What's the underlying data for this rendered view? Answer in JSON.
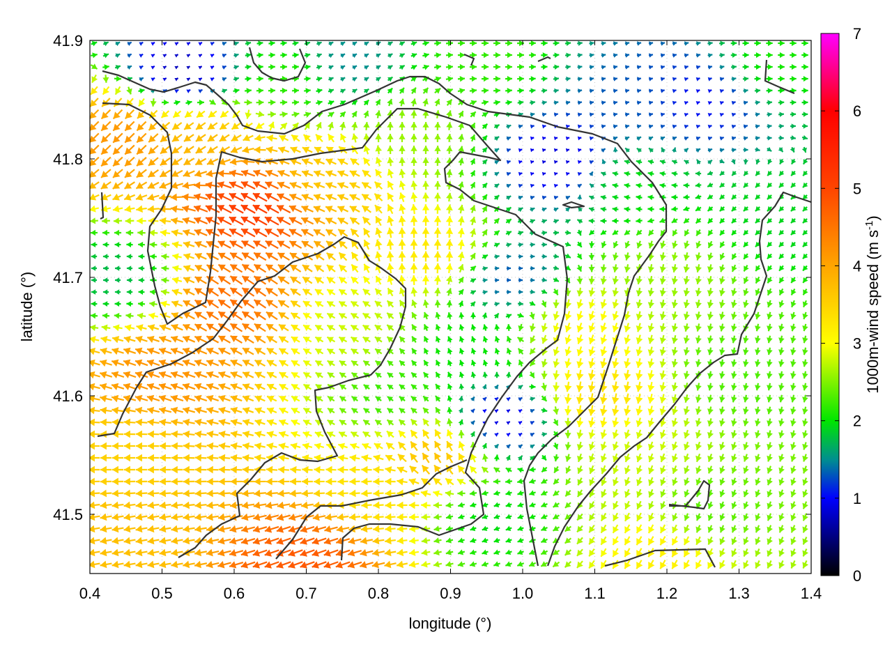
{
  "chart_data": {
    "type": "vector-field",
    "title": "",
    "xlabel": "longitude (°)",
    "ylabel": "latitude (°)",
    "xlim": [
      0.4,
      1.4
    ],
    "ylim": [
      41.45,
      41.9
    ],
    "xticks": [
      {
        "value": 0.4,
        "label": "0.4"
      },
      {
        "value": 0.5,
        "label": "0.5"
      },
      {
        "value": 0.6,
        "label": "0.6"
      },
      {
        "value": 0.7,
        "label": "0.7"
      },
      {
        "value": 0.8,
        "label": "0.8"
      },
      {
        "value": 0.9,
        "label": "0.9"
      },
      {
        "value": 1.0,
        "label": "1.0"
      },
      {
        "value": 1.1,
        "label": "1.1"
      },
      {
        "value": 1.2,
        "label": "1.2"
      },
      {
        "value": 1.3,
        "label": "1.3"
      },
      {
        "value": 1.4,
        "label": "1.4"
      }
    ],
    "yticks": [
      {
        "value": 41.5,
        "label": "41.5"
      },
      {
        "value": 41.6,
        "label": "41.6"
      },
      {
        "value": 41.7,
        "label": "41.7"
      },
      {
        "value": 41.8,
        "label": "41.8"
      },
      {
        "value": 41.9,
        "label": "41.9"
      }
    ],
    "grid": true,
    "colorbar": {
      "label": "1000m-wind speed (m s",
      "label_sup": "-1",
      "label_end": ")",
      "range": [
        0,
        7
      ],
      "ticks": [
        {
          "value": 0,
          "label": "0"
        },
        {
          "value": 1,
          "label": "1"
        },
        {
          "value": 2,
          "label": "2"
        },
        {
          "value": 3,
          "label": "3"
        },
        {
          "value": 4,
          "label": "4"
        },
        {
          "value": 5,
          "label": "5"
        },
        {
          "value": 6,
          "label": "6"
        },
        {
          "value": 7,
          "label": "7"
        }
      ],
      "colormap": [
        {
          "value": 0,
          "color": "#000000"
        },
        {
          "value": 1,
          "color": "#0000ff"
        },
        {
          "value": 1.5,
          "color": "#008f8f"
        },
        {
          "value": 2,
          "color": "#00e600"
        },
        {
          "value": 3,
          "color": "#ffff00"
        },
        {
          "value": 4,
          "color": "#ffa500"
        },
        {
          "value": 5,
          "color": "#ff4500"
        },
        {
          "value": 6,
          "color": "#ff0000"
        },
        {
          "value": 7,
          "color": "#ff00ff"
        }
      ]
    },
    "wind_regions": [
      {
        "lon": 0.45,
        "lat": 41.82,
        "speed": 4.2,
        "dir": 225
      },
      {
        "lon": 0.55,
        "lat": 41.82,
        "speed": 3.8,
        "dir": 215
      },
      {
        "lon": 0.63,
        "lat": 41.76,
        "speed": 5.2,
        "dir": 150
      },
      {
        "lon": 0.6,
        "lat": 41.68,
        "speed": 4.6,
        "dir": 145
      },
      {
        "lon": 0.5,
        "lat": 41.62,
        "speed": 4.2,
        "dir": 160
      },
      {
        "lon": 0.45,
        "lat": 41.55,
        "speed": 3.5,
        "dir": 180
      },
      {
        "lon": 0.45,
        "lat": 41.48,
        "speed": 3.7,
        "dir": 190
      },
      {
        "lon": 0.7,
        "lat": 41.46,
        "speed": 4.8,
        "dir": 200
      },
      {
        "lon": 0.8,
        "lat": 41.52,
        "speed": 3.3,
        "dir": 185
      },
      {
        "lon": 0.44,
        "lat": 41.7,
        "speed": 1.7,
        "dir": 180
      },
      {
        "lon": 0.72,
        "lat": 41.78,
        "speed": 3.6,
        "dir": 160
      },
      {
        "lon": 0.75,
        "lat": 41.66,
        "speed": 2.8,
        "dir": 150
      },
      {
        "lon": 0.82,
        "lat": 41.6,
        "speed": 2.2,
        "dir": 145
      },
      {
        "lon": 0.88,
        "lat": 41.72,
        "speed": 3.3,
        "dir": 90
      },
      {
        "lon": 0.88,
        "lat": 41.55,
        "speed": 3.8,
        "dir": 120
      },
      {
        "lon": 0.85,
        "lat": 41.82,
        "speed": 2.6,
        "dir": 90
      },
      {
        "lon": 0.92,
        "lat": 41.64,
        "speed": 2.0,
        "dir": 110
      },
      {
        "lon": 0.98,
        "lat": 41.7,
        "speed": 1.2,
        "dir": 0
      },
      {
        "lon": 0.97,
        "lat": 41.58,
        "speed": 0.7,
        "dir": 30
      },
      {
        "lon": 0.95,
        "lat": 41.5,
        "speed": 1.9,
        "dir": 200
      },
      {
        "lon": 1.05,
        "lat": 41.8,
        "speed": 0.8,
        "dir": 10
      },
      {
        "lon": 1.15,
        "lat": 41.85,
        "speed": 1.3,
        "dir": 10
      },
      {
        "lon": 1.15,
        "lat": 41.78,
        "speed": 2.0,
        "dir": 170
      },
      {
        "lon": 1.08,
        "lat": 41.66,
        "speed": 3.1,
        "dir": 250
      },
      {
        "lon": 1.1,
        "lat": 41.6,
        "speed": 3.4,
        "dir": 260
      },
      {
        "lon": 1.15,
        "lat": 41.55,
        "speed": 2.8,
        "dir": 250
      },
      {
        "lon": 1.2,
        "lat": 41.7,
        "speed": 2.6,
        "dir": 260
      },
      {
        "lon": 1.3,
        "lat": 41.62,
        "speed": 2.3,
        "dir": 260
      },
      {
        "lon": 1.35,
        "lat": 41.75,
        "speed": 1.9,
        "dir": 225
      },
      {
        "lon": 1.25,
        "lat": 41.5,
        "speed": 2.3,
        "dir": 250
      },
      {
        "lon": 1.2,
        "lat": 41.47,
        "speed": 3.2,
        "dir": 240
      },
      {
        "lon": 0.75,
        "lat": 41.88,
        "speed": 1.4,
        "dir": 30
      },
      {
        "lon": 0.68,
        "lat": 41.87,
        "speed": 2.2,
        "dir": 0
      },
      {
        "lon": 0.95,
        "lat": 41.88,
        "speed": 2.2,
        "dir": 0
      },
      {
        "lon": 1.35,
        "lat": 41.88,
        "speed": 2.1,
        "dir": 0
      },
      {
        "lon": 0.53,
        "lat": 41.87,
        "speed": 0.6,
        "dir": 30
      },
      {
        "lon": 1.25,
        "lat": 41.85,
        "speed": 1.0,
        "dir": 20
      }
    ]
  }
}
